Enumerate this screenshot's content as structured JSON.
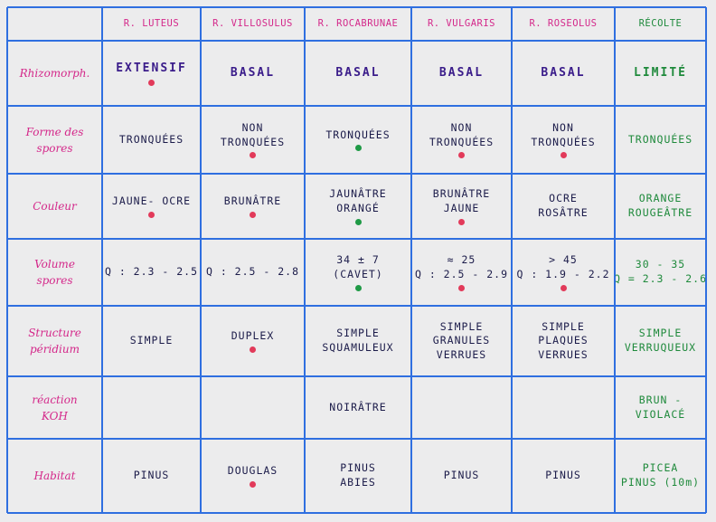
{
  "headers": [
    "R. LUTEUS",
    "R. VILLOSULUS",
    "R. ROCABRUNAE",
    "R. VULGARIS",
    "R. ROSEOLUS",
    "RÉCOLTE"
  ],
  "rows": [
    {
      "label": [
        "Rhizomorph."
      ],
      "cells": [
        {
          "lines": [
            "EXTENSIF"
          ],
          "dot": "red"
        },
        {
          "lines": [
            "BASAL"
          ]
        },
        {
          "lines": [
            "BASAL"
          ]
        },
        {
          "lines": [
            "BASAL"
          ]
        },
        {
          "lines": [
            "BASAL"
          ]
        },
        {
          "lines": [
            "LIMITÉ"
          ]
        }
      ]
    },
    {
      "label": [
        "Forme des",
        "spores"
      ],
      "cells": [
        {
          "lines": [
            "TRONQUÉES"
          ]
        },
        {
          "lines": [
            "NON",
            "TRONQUÉES"
          ],
          "dot": "red"
        },
        {
          "lines": [
            "TRONQUÉES"
          ],
          "dot": "green"
        },
        {
          "lines": [
            "NON",
            "TRONQUÉES"
          ],
          "dot": "red"
        },
        {
          "lines": [
            "NON",
            "TRONQUÉES"
          ],
          "dot": "red"
        },
        {
          "lines": [
            "TRONQUÉES"
          ]
        }
      ]
    },
    {
      "label": [
        "Couleur"
      ],
      "cells": [
        {
          "lines": [
            "JAUNE- OCRE"
          ],
          "dot": "red"
        },
        {
          "lines": [
            "BRUNÂTRE"
          ],
          "dot": "red"
        },
        {
          "lines": [
            "JAUNÂTRE",
            "ORANGÉ"
          ],
          "dot": "green"
        },
        {
          "lines": [
            "BRUNÂTRE",
            "JAUNE"
          ],
          "dot": "red"
        },
        {
          "lines": [
            "OCRE",
            "ROSÂTRE"
          ]
        },
        {
          "lines": [
            "ORANGE",
            "ROUGEÂTRE"
          ]
        }
      ]
    },
    {
      "label": [
        "Volume",
        "spores"
      ],
      "cells": [
        {
          "lines": [
            "Q : 2.3 - 2.5"
          ]
        },
        {
          "lines": [
            "Q : 2.5 - 2.8"
          ]
        },
        {
          "lines": [
            "34 ± 7",
            "(CAVET)"
          ],
          "dot": "green"
        },
        {
          "lines": [
            "≈ 25",
            "Q : 2.5 - 2.9"
          ],
          "dot": "red"
        },
        {
          "lines": [
            "> 45",
            "Q : 1.9 - 2.2"
          ],
          "dot": "red"
        },
        {
          "lines": [
            "30 - 35",
            "Q = 2.3 - 2.6"
          ]
        }
      ]
    },
    {
      "label": [
        "Structure",
        "péridium"
      ],
      "cells": [
        {
          "lines": [
            "SIMPLE"
          ]
        },
        {
          "lines": [
            "DUPLEX"
          ],
          "dot": "red"
        },
        {
          "lines": [
            "SIMPLE",
            "SQUAMULEUX"
          ]
        },
        {
          "lines": [
            "SIMPLE",
            "GRANULES",
            "VERRUES"
          ]
        },
        {
          "lines": [
            "SIMPLE",
            "PLAQUES",
            "VERRUES"
          ]
        },
        {
          "lines": [
            "SIMPLE",
            "VERRUQUEUX"
          ]
        }
      ]
    },
    {
      "label": [
        "réaction",
        "KOH"
      ],
      "cells": [
        {
          "lines": []
        },
        {
          "lines": []
        },
        {
          "lines": [
            "NOIRÂTRE"
          ]
        },
        {
          "lines": []
        },
        {
          "lines": []
        },
        {
          "lines": [
            "BRUN -",
            "VIOLACÉ"
          ]
        }
      ]
    },
    {
      "label": [
        "Habitat"
      ],
      "cells": [
        {
          "lines": [
            "PINUS"
          ]
        },
        {
          "lines": [
            "DOUGLAS"
          ],
          "dot": "red"
        },
        {
          "lines": [
            "PINUS",
            "ABIES"
          ]
        },
        {
          "lines": [
            "PINUS"
          ]
        },
        {
          "lines": [
            "PINUS"
          ]
        },
        {
          "lines": [
            "PICEA",
            "PINUS (10m)"
          ]
        }
      ]
    }
  ],
  "colors": {
    "grid": "#2f6fe0",
    "header": "#d4288a",
    "recolte": "#1f8a3c",
    "text": "#1c1c4a",
    "dot_red": "#e23a5a",
    "dot_green": "#1f9a46"
  }
}
